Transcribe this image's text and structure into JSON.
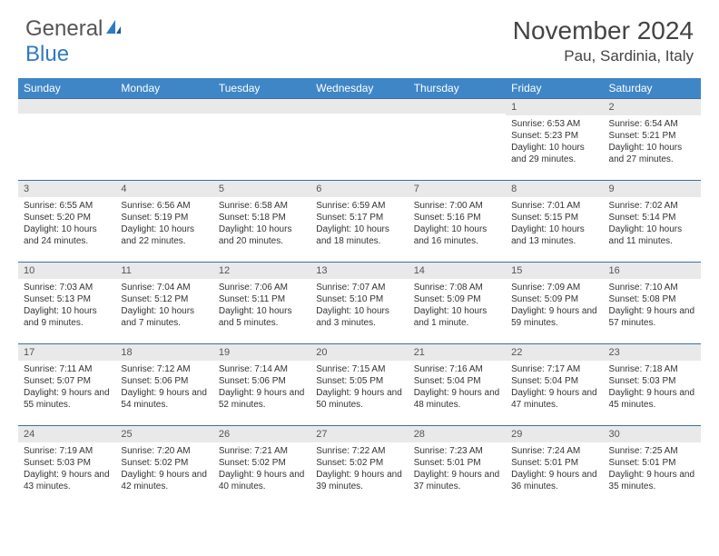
{
  "logo": {
    "text_gray": "General",
    "text_blue": "Blue"
  },
  "title": "November 2024",
  "location": "Pau, Sardinia, Italy",
  "colors": {
    "header_bg": "#3f86c7",
    "daynum_bg": "#e9e9e9",
    "border": "#3f6fa0",
    "logo_blue": "#2f7ac4"
  },
  "weekdays": [
    "Sunday",
    "Monday",
    "Tuesday",
    "Wednesday",
    "Thursday",
    "Friday",
    "Saturday"
  ],
  "weeks": [
    [
      null,
      null,
      null,
      null,
      null,
      {
        "n": "1",
        "sr": "Sunrise: 6:53 AM",
        "ss": "Sunset: 5:23 PM",
        "dl": "Daylight: 10 hours and 29 minutes."
      },
      {
        "n": "2",
        "sr": "Sunrise: 6:54 AM",
        "ss": "Sunset: 5:21 PM",
        "dl": "Daylight: 10 hours and 27 minutes."
      }
    ],
    [
      {
        "n": "3",
        "sr": "Sunrise: 6:55 AM",
        "ss": "Sunset: 5:20 PM",
        "dl": "Daylight: 10 hours and 24 minutes."
      },
      {
        "n": "4",
        "sr": "Sunrise: 6:56 AM",
        "ss": "Sunset: 5:19 PM",
        "dl": "Daylight: 10 hours and 22 minutes."
      },
      {
        "n": "5",
        "sr": "Sunrise: 6:58 AM",
        "ss": "Sunset: 5:18 PM",
        "dl": "Daylight: 10 hours and 20 minutes."
      },
      {
        "n": "6",
        "sr": "Sunrise: 6:59 AM",
        "ss": "Sunset: 5:17 PM",
        "dl": "Daylight: 10 hours and 18 minutes."
      },
      {
        "n": "7",
        "sr": "Sunrise: 7:00 AM",
        "ss": "Sunset: 5:16 PM",
        "dl": "Daylight: 10 hours and 16 minutes."
      },
      {
        "n": "8",
        "sr": "Sunrise: 7:01 AM",
        "ss": "Sunset: 5:15 PM",
        "dl": "Daylight: 10 hours and 13 minutes."
      },
      {
        "n": "9",
        "sr": "Sunrise: 7:02 AM",
        "ss": "Sunset: 5:14 PM",
        "dl": "Daylight: 10 hours and 11 minutes."
      }
    ],
    [
      {
        "n": "10",
        "sr": "Sunrise: 7:03 AM",
        "ss": "Sunset: 5:13 PM",
        "dl": "Daylight: 10 hours and 9 minutes."
      },
      {
        "n": "11",
        "sr": "Sunrise: 7:04 AM",
        "ss": "Sunset: 5:12 PM",
        "dl": "Daylight: 10 hours and 7 minutes."
      },
      {
        "n": "12",
        "sr": "Sunrise: 7:06 AM",
        "ss": "Sunset: 5:11 PM",
        "dl": "Daylight: 10 hours and 5 minutes."
      },
      {
        "n": "13",
        "sr": "Sunrise: 7:07 AM",
        "ss": "Sunset: 5:10 PM",
        "dl": "Daylight: 10 hours and 3 minutes."
      },
      {
        "n": "14",
        "sr": "Sunrise: 7:08 AM",
        "ss": "Sunset: 5:09 PM",
        "dl": "Daylight: 10 hours and 1 minute."
      },
      {
        "n": "15",
        "sr": "Sunrise: 7:09 AM",
        "ss": "Sunset: 5:09 PM",
        "dl": "Daylight: 9 hours and 59 minutes."
      },
      {
        "n": "16",
        "sr": "Sunrise: 7:10 AM",
        "ss": "Sunset: 5:08 PM",
        "dl": "Daylight: 9 hours and 57 minutes."
      }
    ],
    [
      {
        "n": "17",
        "sr": "Sunrise: 7:11 AM",
        "ss": "Sunset: 5:07 PM",
        "dl": "Daylight: 9 hours and 55 minutes."
      },
      {
        "n": "18",
        "sr": "Sunrise: 7:12 AM",
        "ss": "Sunset: 5:06 PM",
        "dl": "Daylight: 9 hours and 54 minutes."
      },
      {
        "n": "19",
        "sr": "Sunrise: 7:14 AM",
        "ss": "Sunset: 5:06 PM",
        "dl": "Daylight: 9 hours and 52 minutes."
      },
      {
        "n": "20",
        "sr": "Sunrise: 7:15 AM",
        "ss": "Sunset: 5:05 PM",
        "dl": "Daylight: 9 hours and 50 minutes."
      },
      {
        "n": "21",
        "sr": "Sunrise: 7:16 AM",
        "ss": "Sunset: 5:04 PM",
        "dl": "Daylight: 9 hours and 48 minutes."
      },
      {
        "n": "22",
        "sr": "Sunrise: 7:17 AM",
        "ss": "Sunset: 5:04 PM",
        "dl": "Daylight: 9 hours and 47 minutes."
      },
      {
        "n": "23",
        "sr": "Sunrise: 7:18 AM",
        "ss": "Sunset: 5:03 PM",
        "dl": "Daylight: 9 hours and 45 minutes."
      }
    ],
    [
      {
        "n": "24",
        "sr": "Sunrise: 7:19 AM",
        "ss": "Sunset: 5:03 PM",
        "dl": "Daylight: 9 hours and 43 minutes."
      },
      {
        "n": "25",
        "sr": "Sunrise: 7:20 AM",
        "ss": "Sunset: 5:02 PM",
        "dl": "Daylight: 9 hours and 42 minutes."
      },
      {
        "n": "26",
        "sr": "Sunrise: 7:21 AM",
        "ss": "Sunset: 5:02 PM",
        "dl": "Daylight: 9 hours and 40 minutes."
      },
      {
        "n": "27",
        "sr": "Sunrise: 7:22 AM",
        "ss": "Sunset: 5:02 PM",
        "dl": "Daylight: 9 hours and 39 minutes."
      },
      {
        "n": "28",
        "sr": "Sunrise: 7:23 AM",
        "ss": "Sunset: 5:01 PM",
        "dl": "Daylight: 9 hours and 37 minutes."
      },
      {
        "n": "29",
        "sr": "Sunrise: 7:24 AM",
        "ss": "Sunset: 5:01 PM",
        "dl": "Daylight: 9 hours and 36 minutes."
      },
      {
        "n": "30",
        "sr": "Sunrise: 7:25 AM",
        "ss": "Sunset: 5:01 PM",
        "dl": "Daylight: 9 hours and 35 minutes."
      }
    ]
  ]
}
